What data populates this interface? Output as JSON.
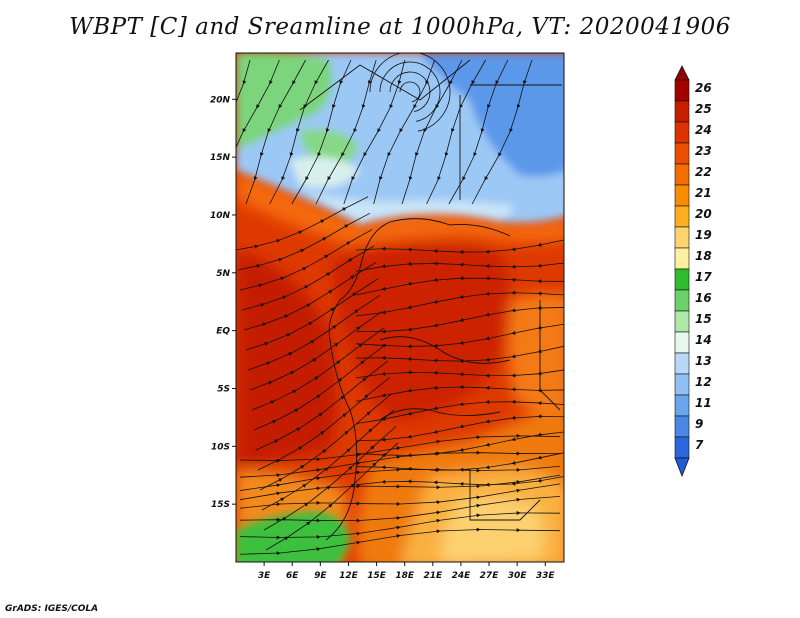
{
  "title": "WBPT [C] and Sreamline at 1000hPa, VT: 2020041906",
  "footer": "GrADS: IGES/COLA",
  "map": {
    "lon_range": [
      0,
      35
    ],
    "lat_range": [
      -20,
      24
    ],
    "x_ticks": [
      {
        "lon": 3,
        "label": "3E"
      },
      {
        "lon": 6,
        "label": "6E"
      },
      {
        "lon": 9,
        "label": "9E"
      },
      {
        "lon": 12,
        "label": "12E"
      },
      {
        "lon": 15,
        "label": "15E"
      },
      {
        "lon": 18,
        "label": "18E"
      },
      {
        "lon": 21,
        "label": "21E"
      },
      {
        "lon": 24,
        "label": "24E"
      },
      {
        "lon": 27,
        "label": "27E"
      },
      {
        "lon": 30,
        "label": "30E"
      },
      {
        "lon": 33,
        "label": "33E"
      }
    ],
    "y_ticks": [
      {
        "lat": 20,
        "label": "20N"
      },
      {
        "lat": 15,
        "label": "15N"
      },
      {
        "lat": 10,
        "label": "10N"
      },
      {
        "lat": 5,
        "label": "5N"
      },
      {
        "lat": 0,
        "label": "EQ"
      },
      {
        "lat": -5,
        "label": "5S"
      },
      {
        "lat": -10,
        "label": "10S"
      },
      {
        "lat": -15,
        "label": "15S"
      }
    ]
  },
  "colorbar": {
    "levels": [
      "26",
      "25",
      "24",
      "23",
      "22",
      "21",
      "20",
      "19",
      "18",
      "17",
      "16",
      "15",
      "14",
      "13",
      "12",
      "11",
      "9",
      "7"
    ],
    "colors": [
      "#a50000",
      "#c81e00",
      "#dc3200",
      "#ec4e00",
      "#f56c00",
      "#fa8c00",
      "#fcae20",
      "#fdd470",
      "#fdf0a0",
      "#2ebb2e",
      "#6ad26a",
      "#b0e8a6",
      "#e8f8f0",
      "#b8d8f8",
      "#90c0f4",
      "#6aa6ee",
      "#4a88e6",
      "#2a66dc"
    ],
    "top_color": "#960000",
    "bottom_color": "#1f5ad8"
  }
}
